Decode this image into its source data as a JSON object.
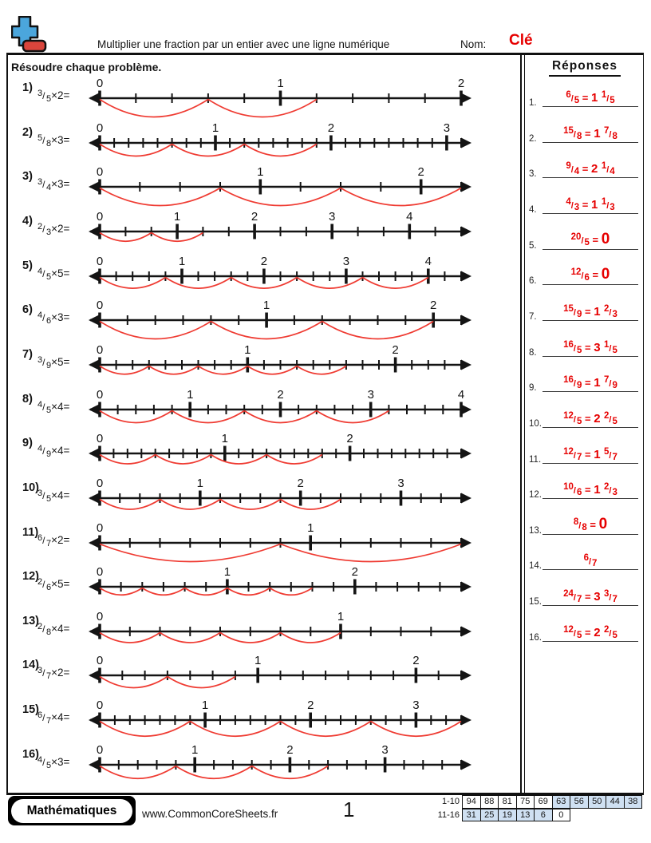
{
  "header": {
    "title": "Multiplier une fraction par un entier avec une ligne numérique",
    "name_label": "Nom:",
    "name_value": "Clé",
    "instructions": "Résoudre chaque problème."
  },
  "answers_panel": {
    "title": "Réponses"
  },
  "problems": [
    {
      "id": "1)",
      "numerator": 3,
      "denominator": 5,
      "multiplier": 2,
      "intervals": 10
    },
    {
      "id": "2)",
      "numerator": 5,
      "denominator": 8,
      "multiplier": 3,
      "intervals": 25
    },
    {
      "id": "3)",
      "numerator": 3,
      "denominator": 4,
      "multiplier": 3,
      "intervals": 9
    },
    {
      "id": "4)",
      "numerator": 2,
      "denominator": 3,
      "multiplier": 2,
      "intervals": 14
    },
    {
      "id": "5)",
      "numerator": 4,
      "denominator": 5,
      "multiplier": 5,
      "intervals": 22
    },
    {
      "id": "6)",
      "numerator": 4,
      "denominator": 6,
      "multiplier": 3,
      "intervals": 13
    },
    {
      "id": "7)",
      "numerator": 3,
      "denominator": 9,
      "multiplier": 5,
      "intervals": 22
    },
    {
      "id": "8)",
      "numerator": 4,
      "denominator": 5,
      "multiplier": 4,
      "intervals": 20
    },
    {
      "id": "9)",
      "numerator": 4,
      "denominator": 9,
      "multiplier": 4,
      "intervals": 26
    },
    {
      "id": "10)",
      "numerator": 3,
      "denominator": 5,
      "multiplier": 4,
      "intervals": 18
    },
    {
      "id": "11)",
      "numerator": 6,
      "denominator": 7,
      "multiplier": 2,
      "intervals": 12
    },
    {
      "id": "12)",
      "numerator": 2,
      "denominator": 6,
      "multiplier": 5,
      "intervals": 17
    },
    {
      "id": "13)",
      "numerator": 2,
      "denominator": 8,
      "multiplier": 4,
      "intervals": 12
    },
    {
      "id": "14)",
      "numerator": 3,
      "denominator": 7,
      "multiplier": 2,
      "intervals": 16
    },
    {
      "id": "15)",
      "numerator": 6,
      "denominator": 7,
      "multiplier": 4,
      "intervals": 24
    },
    {
      "id": "16)",
      "numerator": 4,
      "denominator": 5,
      "multiplier": 3,
      "intervals": 19
    }
  ],
  "answers": [
    {
      "index": "1.",
      "improper": {
        "num": "6",
        "den": "5"
      },
      "result": {
        "type": "mixed",
        "whole": "1",
        "num": "1",
        "den": "5"
      }
    },
    {
      "index": "2.",
      "improper": {
        "num": "15",
        "den": "8"
      },
      "result": {
        "type": "mixed",
        "whole": "1",
        "num": "7",
        "den": "8"
      }
    },
    {
      "index": "3.",
      "improper": {
        "num": "9",
        "den": "4"
      },
      "result": {
        "type": "mixed",
        "whole": "2",
        "num": "1",
        "den": "4"
      }
    },
    {
      "index": "4.",
      "improper": {
        "num": "4",
        "den": "3"
      },
      "result": {
        "type": "mixed",
        "whole": "1",
        "num": "1",
        "den": "3"
      }
    },
    {
      "index": "5.",
      "improper": {
        "num": "20",
        "den": "5"
      },
      "result": {
        "type": "zero",
        "text": "0"
      }
    },
    {
      "index": "6.",
      "improper": {
        "num": "12",
        "den": "6"
      },
      "result": {
        "type": "zero",
        "text": "0"
      }
    },
    {
      "index": "7.",
      "improper": {
        "num": "15",
        "den": "9"
      },
      "result": {
        "type": "mixed",
        "whole": "1",
        "num": "2",
        "den": "3"
      }
    },
    {
      "index": "8.",
      "improper": {
        "num": "16",
        "den": "5"
      },
      "result": {
        "type": "mixed",
        "whole": "3",
        "num": "1",
        "den": "5"
      }
    },
    {
      "index": "9.",
      "improper": {
        "num": "16",
        "den": "9"
      },
      "result": {
        "type": "mixed",
        "whole": "1",
        "num": "7",
        "den": "9"
      }
    },
    {
      "index": "10.",
      "improper": {
        "num": "12",
        "den": "5"
      },
      "result": {
        "type": "mixed",
        "whole": "2",
        "num": "2",
        "den": "5"
      }
    },
    {
      "index": "11.",
      "improper": {
        "num": "12",
        "den": "7"
      },
      "result": {
        "type": "mixed",
        "whole": "1",
        "num": "5",
        "den": "7"
      }
    },
    {
      "index": "12.",
      "improper": {
        "num": "10",
        "den": "6"
      },
      "result": {
        "type": "mixed",
        "whole": "1",
        "num": "2",
        "den": "3"
      }
    },
    {
      "index": "13.",
      "improper": {
        "num": "8",
        "den": "8"
      },
      "result": {
        "type": "zero",
        "text": "0"
      }
    },
    {
      "index": "14.",
      "improper": {
        "num": "6",
        "den": "7"
      },
      "result": {
        "type": "none"
      }
    },
    {
      "index": "15.",
      "improper": {
        "num": "24",
        "den": "7"
      },
      "result": {
        "type": "mixed",
        "whole": "3",
        "num": "3",
        "den": "7"
      }
    },
    {
      "index": "16.",
      "improper": {
        "num": "12",
        "den": "5"
      },
      "result": {
        "type": "mixed",
        "whole": "2",
        "num": "2",
        "den": "5"
      }
    }
  ],
  "footer": {
    "brand": "Mathématiques",
    "website": "www.CommonCoreSheets.fr",
    "page_number": "1",
    "score_rows": [
      {
        "label": "1-10",
        "cells": [
          {
            "v": "94",
            "shaded": false
          },
          {
            "v": "88",
            "shaded": false
          },
          {
            "v": "81",
            "shaded": false
          },
          {
            "v": "75",
            "shaded": false
          },
          {
            "v": "69",
            "shaded": false
          },
          {
            "v": "63",
            "shaded": true
          },
          {
            "v": "56",
            "shaded": true
          },
          {
            "v": "50",
            "shaded": true
          },
          {
            "v": "44",
            "shaded": true
          },
          {
            "v": "38",
            "shaded": true
          }
        ]
      },
      {
        "label": "11-16",
        "cells": [
          {
            "v": "31",
            "shaded": true
          },
          {
            "v": "25",
            "shaded": true
          },
          {
            "v": "19",
            "shaded": true
          },
          {
            "v": "13",
            "shaded": true
          },
          {
            "v": "6",
            "shaded": true
          },
          {
            "v": "0",
            "shaded": false
          }
        ]
      }
    ]
  },
  "colors": {
    "answer_red": "#e60000",
    "arc_red": "#ef3b32",
    "line_black": "#141414",
    "cell_blue": "#cfe0f2",
    "logo_blue": "#4ba6dc",
    "logo_red": "#d9453c"
  }
}
